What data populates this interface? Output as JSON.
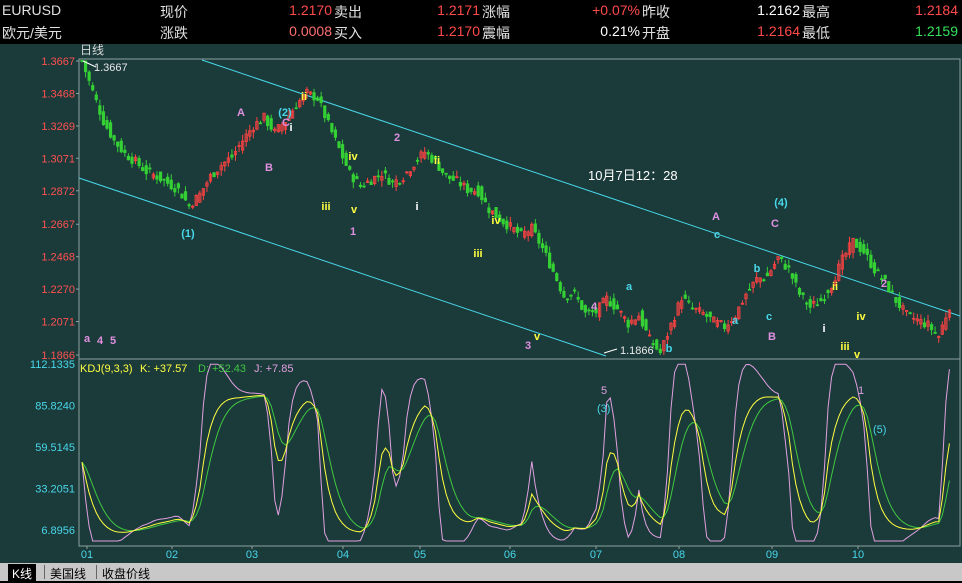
{
  "quote": {
    "symbol": "EURUSD",
    "name": "欧元/美元",
    "row1": [
      {
        "label": "现价",
        "value": "1.2170"
      },
      {
        "label": "卖出",
        "value": "1.2171"
      },
      {
        "label": "涨幅",
        "value": "+0.07%"
      },
      {
        "label": "昨收",
        "value": "1.2162"
      },
      {
        "label": "最高",
        "value": "1.2184"
      }
    ],
    "row2": [
      {
        "label": "涨跌",
        "value": "0.0008"
      },
      {
        "label": "买入",
        "value": "1.2170"
      },
      {
        "label": "震幅",
        "value": "0.21%"
      },
      {
        "label": "开盘",
        "value": "1.2164"
      },
      {
        "label": "最低",
        "value": "1.2159"
      }
    ]
  },
  "period_label": "日线",
  "kdj_header": {
    "name": "KDJ(9,3,3)",
    "k": "K: +37.57",
    "d": "D: +52.43",
    "j": "J: +7.85"
  },
  "colors": {
    "background": "#1b3a3a",
    "channel": "#48d8ea",
    "up": "#ff4242",
    "down": "#34d034",
    "k": "#ffff40",
    "d": "#40c840",
    "j": "#e0a0e0"
  },
  "tabs": [
    {
      "label": "K线",
      "active": true
    },
    {
      "label": "美国线",
      "active": false
    },
    {
      "label": "收盘价线",
      "active": false
    }
  ],
  "chart_data": [
    {
      "type": "candlestick",
      "title": "EURUSD 日线",
      "ylim": [
        1.1866,
        1.3667
      ],
      "y_ticks": [
        "1.3667",
        "1.3468",
        "1.3269",
        "1.3071",
        "1.2872",
        "1.2667",
        "1.2468",
        "1.2270",
        "1.2071",
        "1.1866"
      ],
      "x_ticks": [
        "01",
        "02",
        "03",
        "04",
        "05",
        "06",
        "07",
        "08",
        "09",
        "10"
      ],
      "annotations_text": {
        "high": "1.3667",
        "low": "1.1866",
        "date": "10月7日12：28"
      },
      "wave_labels": [
        {
          "text": "(2)",
          "color": "cyan"
        },
        {
          "text": "C",
          "color": "pink"
        },
        {
          "text": "ii",
          "color": "yellow"
        },
        {
          "text": "i",
          "color": "white"
        },
        {
          "text": "A",
          "color": "pink"
        },
        {
          "text": "B",
          "color": "pink"
        },
        {
          "text": "(1)",
          "color": "cyan"
        },
        {
          "text": "iii",
          "color": "yellow"
        },
        {
          "text": "iv",
          "color": "yellow"
        },
        {
          "text": "v",
          "color": "yellow"
        },
        {
          "text": "1",
          "color": "pink"
        },
        {
          "text": "2",
          "color": "pink"
        },
        {
          "text": "ii",
          "color": "yellow"
        },
        {
          "text": "i",
          "color": "white"
        },
        {
          "text": "iv",
          "color": "yellow"
        },
        {
          "text": "iii",
          "color": "yellow"
        },
        {
          "text": "3",
          "color": "pink"
        },
        {
          "text": "v",
          "color": "yellow"
        },
        {
          "text": "4",
          "color": "pink"
        },
        {
          "text": "a",
          "color": "cyan"
        },
        {
          "text": "b",
          "color": "cyan"
        },
        {
          "text": "A",
          "color": "pink"
        },
        {
          "text": "c",
          "color": "cyan"
        },
        {
          "text": "b",
          "color": "cyan"
        },
        {
          "text": "a",
          "color": "cyan"
        },
        {
          "text": "C",
          "color": "pink"
        },
        {
          "text": "(4)",
          "color": "cyan"
        },
        {
          "text": "c",
          "color": "cyan"
        },
        {
          "text": "B",
          "color": "pink"
        },
        {
          "text": "2",
          "color": "pink"
        },
        {
          "text": "ii",
          "color": "yellow"
        },
        {
          "text": "iv",
          "color": "yellow"
        },
        {
          "text": "i",
          "color": "white"
        },
        {
          "text": "iii",
          "color": "yellow"
        },
        {
          "text": "v",
          "color": "yellow"
        },
        {
          "text": "a",
          "color": "pink"
        },
        {
          "text": "4",
          "color": "pink"
        },
        {
          "text": "5",
          "color": "pink"
        }
      ],
      "close_path": [
        [
          0,
          1.3667
        ],
        [
          3,
          1.348
        ],
        [
          6,
          1.33
        ],
        [
          9,
          1.318
        ],
        [
          12,
          1.31
        ],
        [
          15,
          1.305
        ],
        [
          18,
          1.299
        ],
        [
          21,
          1.296
        ],
        [
          24,
          1.292
        ],
        [
          27,
          1.288
        ],
        [
          30,
          1.278
        ],
        [
          33,
          1.285
        ],
        [
          36,
          1.296
        ],
        [
          39,
          1.303
        ],
        [
          42,
          1.308
        ],
        [
          45,
          1.318
        ],
        [
          48,
          1.327
        ],
        [
          51,
          1.332
        ],
        [
          54,
          1.323
        ],
        [
          57,
          1.33
        ],
        [
          60,
          1.34
        ],
        [
          63,
          1.347
        ],
        [
          66,
          1.344
        ],
        [
          69,
          1.328
        ],
        [
          72,
          1.313
        ],
        [
          75,
          1.298
        ],
        [
          78,
          1.29
        ],
        [
          81,
          1.294
        ],
        [
          84,
          1.298
        ],
        [
          87,
          1.292
        ],
        [
          90,
          1.296
        ],
        [
          93,
          1.304
        ],
        [
          96,
          1.311
        ],
        [
          99,
          1.305
        ],
        [
          102,
          1.296
        ],
        [
          105,
          1.293
        ],
        [
          108,
          1.288
        ],
        [
          111,
          1.287
        ],
        [
          114,
          1.276
        ],
        [
          117,
          1.27
        ],
        [
          120,
          1.265
        ],
        [
          123,
          1.26
        ],
        [
          126,
          1.264
        ],
        [
          129,
          1.252
        ],
        [
          132,
          1.238
        ],
        [
          135,
          1.223
        ],
        [
          138,
          1.224
        ],
        [
          141,
          1.212
        ],
        [
          144,
          1.213
        ],
        [
          147,
          1.221
        ],
        [
          150,
          1.215
        ],
        [
          153,
          1.206
        ],
        [
          156,
          1.211
        ],
        [
          159,
          1.196
        ],
        [
          162,
          1.188
        ],
        [
          165,
          1.205
        ],
        [
          168,
          1.222
        ],
        [
          171,
          1.215
        ],
        [
          174,
          1.212
        ],
        [
          177,
          1.207
        ],
        [
          180,
          1.204
        ],
        [
          183,
          1.211
        ],
        [
          186,
          1.224
        ],
        [
          189,
          1.233
        ],
        [
          192,
          1.235
        ],
        [
          195,
          1.246
        ],
        [
          198,
          1.239
        ],
        [
          201,
          1.224
        ],
        [
          204,
          1.216
        ],
        [
          207,
          1.22
        ],
        [
          210,
          1.23
        ],
        [
          213,
          1.245
        ],
        [
          216,
          1.256
        ],
        [
          219,
          1.25
        ],
        [
          222,
          1.239
        ],
        [
          225,
          1.231
        ],
        [
          228,
          1.22
        ],
        [
          231,
          1.211
        ],
        [
          234,
          1.208
        ],
        [
          237,
          1.205
        ],
        [
          240,
          1.198
        ],
        [
          243,
          1.217
        ]
      ]
    },
    {
      "type": "line",
      "title": "KDJ(9,3,3)",
      "ylim": [
        0,
        112.1335
      ],
      "y_ticks": [
        "112.1335",
        "85.8240",
        "59.5145",
        "33.2051",
        "6.8956"
      ],
      "series": [
        {
          "name": "K",
          "last": 37.57
        },
        {
          "name": "D",
          "last": 52.43
        },
        {
          "name": "J",
          "last": 7.85
        }
      ],
      "labels": [
        "5",
        "(3)",
        "1",
        "(5)"
      ]
    }
  ]
}
